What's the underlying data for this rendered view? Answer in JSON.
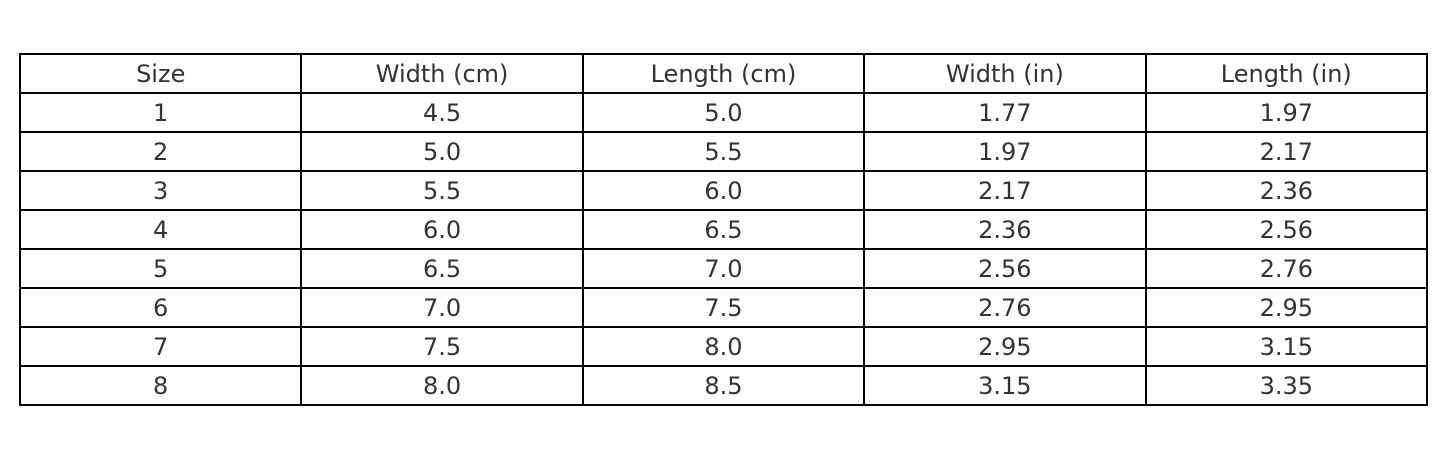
{
  "chart_data": {
    "type": "table",
    "columns": [
      "Size",
      "Width (cm)",
      "Length (cm)",
      "Width (in)",
      "Length (in)"
    ],
    "rows": [
      [
        "1",
        "4.5",
        "5.0",
        "1.77",
        "1.97"
      ],
      [
        "2",
        "5.0",
        "5.5",
        "1.97",
        "2.17"
      ],
      [
        "3",
        "5.5",
        "6.0",
        "2.17",
        "2.36"
      ],
      [
        "4",
        "6.0",
        "6.5",
        "2.36",
        "2.56"
      ],
      [
        "5",
        "6.5",
        "7.0",
        "2.56",
        "2.76"
      ],
      [
        "6",
        "7.0",
        "7.5",
        "2.76",
        "2.95"
      ],
      [
        "7",
        "7.5",
        "8.0",
        "2.95",
        "3.15"
      ],
      [
        "8",
        "8.0",
        "8.5",
        "3.15",
        "3.35"
      ]
    ]
  }
}
